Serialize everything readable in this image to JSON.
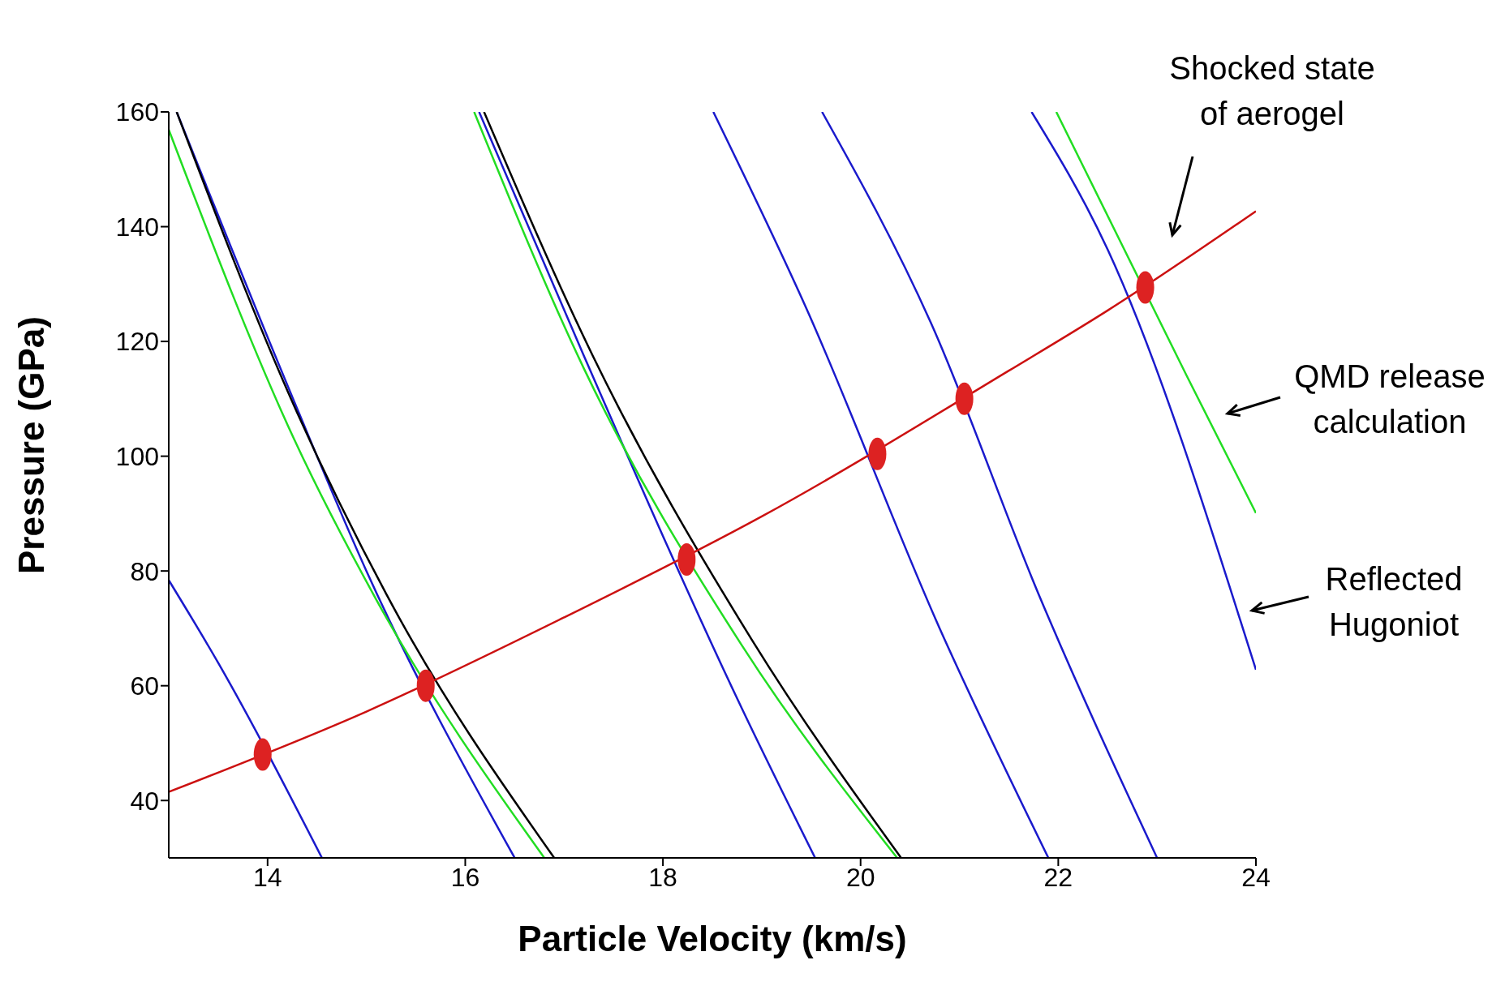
{
  "chart_data": {
    "type": "line",
    "xlabel": "Particle Velocity (km/s)",
    "ylabel": "Pressure (GPa)",
    "xlim": [
      13,
      24
    ],
    "ylim": [
      30,
      160
    ],
    "xticks": [
      14,
      16,
      18,
      20,
      22,
      24
    ],
    "yticks": [
      40,
      60,
      80,
      100,
      120,
      140,
      160
    ],
    "series": [
      {
        "type": "scatter",
        "color": "#dd2222",
        "x": [
          13.95,
          15.6,
          18.24,
          20.17,
          21.05,
          22.88
        ],
        "values": [
          48,
          60,
          82,
          100.4,
          110,
          129.4
        ]
      },
      {
        "color": "#1a1acc",
        "x": [
          13,
          13.5,
          14.55
        ],
        "values": [
          78.4,
          64,
          30
        ]
      },
      {
        "color": "#1a1acc",
        "x": [
          13.08,
          14.27,
          15,
          16.5
        ],
        "values": [
          160,
          109.5,
          80,
          30
        ]
      },
      {
        "color": "#000000",
        "x": [
          13.08,
          14.27,
          15.2,
          16.9
        ],
        "values": [
          160,
          108.7,
          76,
          30
        ]
      },
      {
        "color": "#22dd22",
        "x": [
          13,
          14.27,
          15.1,
          16.8
        ],
        "values": [
          156.9,
          102.9,
          75,
          30
        ]
      },
      {
        "color": "#1a1acc",
        "x": [
          16.14,
          17.2,
          18.8,
          19.54
        ],
        "values": [
          160,
          117.5,
          56,
          30
        ]
      },
      {
        "color": "#000000",
        "x": [
          16.19,
          17.29,
          18.9,
          20.41
        ],
        "values": [
          160,
          117.5,
          68,
          30
        ]
      },
      {
        "color": "#22dd22",
        "x": [
          16.09,
          17.2,
          18.8,
          20.37
        ],
        "values": [
          160,
          115.3,
          67,
          30
        ]
      },
      {
        "color": "#1a1acc",
        "x": [
          18.51,
          19.44,
          20.8,
          21.9
        ],
        "values": [
          160,
          126.2,
          70,
          30
        ]
      },
      {
        "color": "#1a1acc",
        "x": [
          19.61,
          20.71,
          21.8,
          23
        ],
        "values": [
          160,
          123.3,
          76,
          30
        ]
      },
      {
        "color": "#1a1acc",
        "x": [
          21.73,
          22.5,
          24
        ],
        "values": [
          160,
          136,
          62.8
        ]
      },
      {
        "color": "#22dd22",
        "x": [
          21.98,
          23.3,
          24
        ],
        "values": [
          160,
          114,
          90.1
        ]
      },
      {
        "color": "#cc1111",
        "x": [
          13,
          15,
          17,
          19,
          21.5,
          22.5,
          24
        ],
        "values": [
          41.5,
          55.5,
          71.9,
          89.5,
          114.9,
          125.4,
          142.7
        ]
      }
    ],
    "annotations": [
      "Shocked state\nof aerogel",
      "QMD release\ncalculation",
      "Reflected\nHugoniot"
    ]
  }
}
